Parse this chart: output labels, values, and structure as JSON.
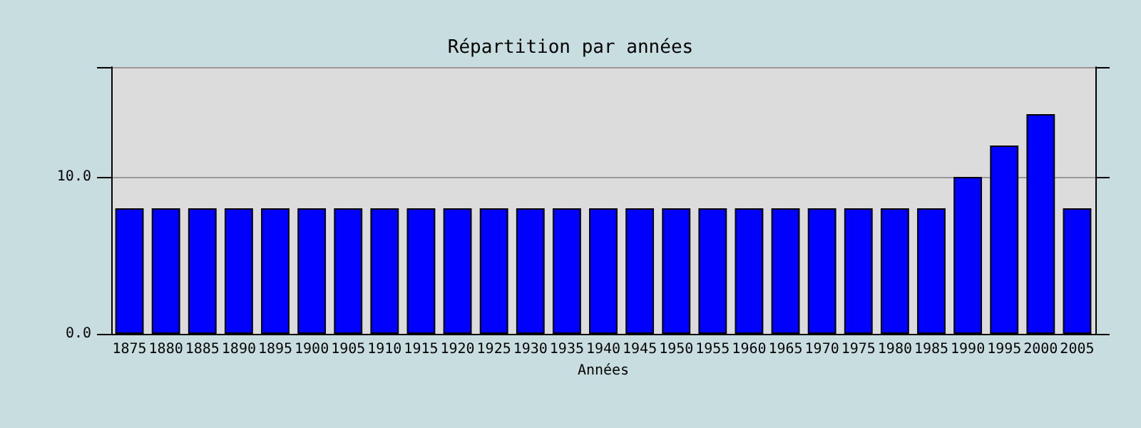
{
  "chart_data": {
    "type": "bar",
    "title": "Répartition par années",
    "xlabel": "Années",
    "categories": [
      "1875",
      "1880",
      "1885",
      "1890",
      "1895",
      "1900",
      "1905",
      "1910",
      "1915",
      "1920",
      "1925",
      "1930",
      "1935",
      "1940",
      "1945",
      "1950",
      "1955",
      "1960",
      "1965",
      "1970",
      "1975",
      "1980",
      "1985",
      "1990",
      "1995",
      "2000",
      "2005"
    ],
    "values": [
      8,
      8,
      8,
      8,
      8,
      8,
      8,
      8,
      8,
      8,
      8,
      8,
      8,
      8,
      8,
      8,
      8,
      8,
      8,
      8,
      8,
      8,
      8,
      10,
      12,
      14,
      8
    ],
    "color": "#0000ff",
    "ylim": [
      0,
      17
    ],
    "yticks": [
      {
        "value": 0,
        "label": "0.0"
      },
      {
        "value": 10,
        "label": "10.0"
      },
      {
        "value": 17,
        "label": null
      }
    ],
    "grid": "y"
  }
}
